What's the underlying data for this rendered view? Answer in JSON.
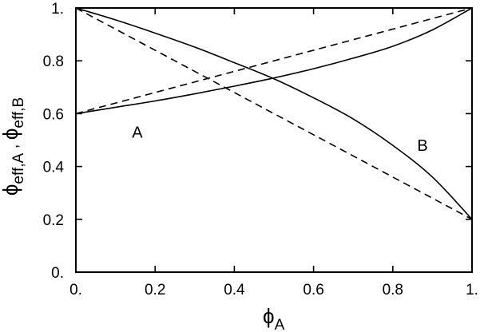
{
  "chart_data": {
    "type": "line",
    "xlabel": {
      "main": "ϕ",
      "sub": "A"
    },
    "ylabel": {
      "main1": "ϕ",
      "sub1": "eff,A",
      "sep": " , ",
      "main2": "ϕ",
      "sub2": "eff,B"
    },
    "xlim": [
      0,
      1
    ],
    "ylim": [
      0,
      1
    ],
    "x_ticks": [
      {
        "value": 0,
        "label": "0."
      },
      {
        "value": 0.2,
        "label": "0.2"
      },
      {
        "value": 0.4,
        "label": "0.4"
      },
      {
        "value": 0.6,
        "label": "0.6"
      },
      {
        "value": 0.8,
        "label": "0.8"
      },
      {
        "value": 1,
        "label": "1."
      }
    ],
    "y_ticks": [
      {
        "value": 0,
        "label": "0."
      },
      {
        "value": 0.2,
        "label": "0.2"
      },
      {
        "value": 0.4,
        "label": "0.4"
      },
      {
        "value": 0.6,
        "label": "0.6"
      },
      {
        "value": 0.8,
        "label": "0.8"
      },
      {
        "value": 1,
        "label": "1."
      }
    ],
    "series": [
      {
        "style": "solid",
        "x": [
          0,
          0.1,
          0.2,
          0.3,
          0.4,
          0.5,
          0.6,
          0.7,
          0.8,
          0.9,
          1
        ],
        "y": [
          0.6,
          0.624,
          0.648,
          0.675,
          0.704,
          0.735,
          0.77,
          0.81,
          0.855,
          0.917,
          1
        ]
      },
      {
        "style": "solid",
        "x": [
          0,
          0.1,
          0.2,
          0.3,
          0.4,
          0.5,
          0.6,
          0.7,
          0.8,
          0.9,
          1
        ],
        "y": [
          1,
          0.955,
          0.905,
          0.852,
          0.793,
          0.732,
          0.66,
          0.58,
          0.48,
          0.36,
          0.2
        ]
      },
      {
        "style": "dashed",
        "x": [
          0,
          1
        ],
        "y": [
          0.6,
          1
        ]
      },
      {
        "style": "dashed",
        "x": [
          0,
          1
        ],
        "y": [
          1,
          0.2
        ]
      }
    ],
    "annotations": [
      {
        "text": "A",
        "x": 0.155,
        "y": 0.53
      },
      {
        "text": "B",
        "x": 0.875,
        "y": 0.48
      }
    ]
  }
}
